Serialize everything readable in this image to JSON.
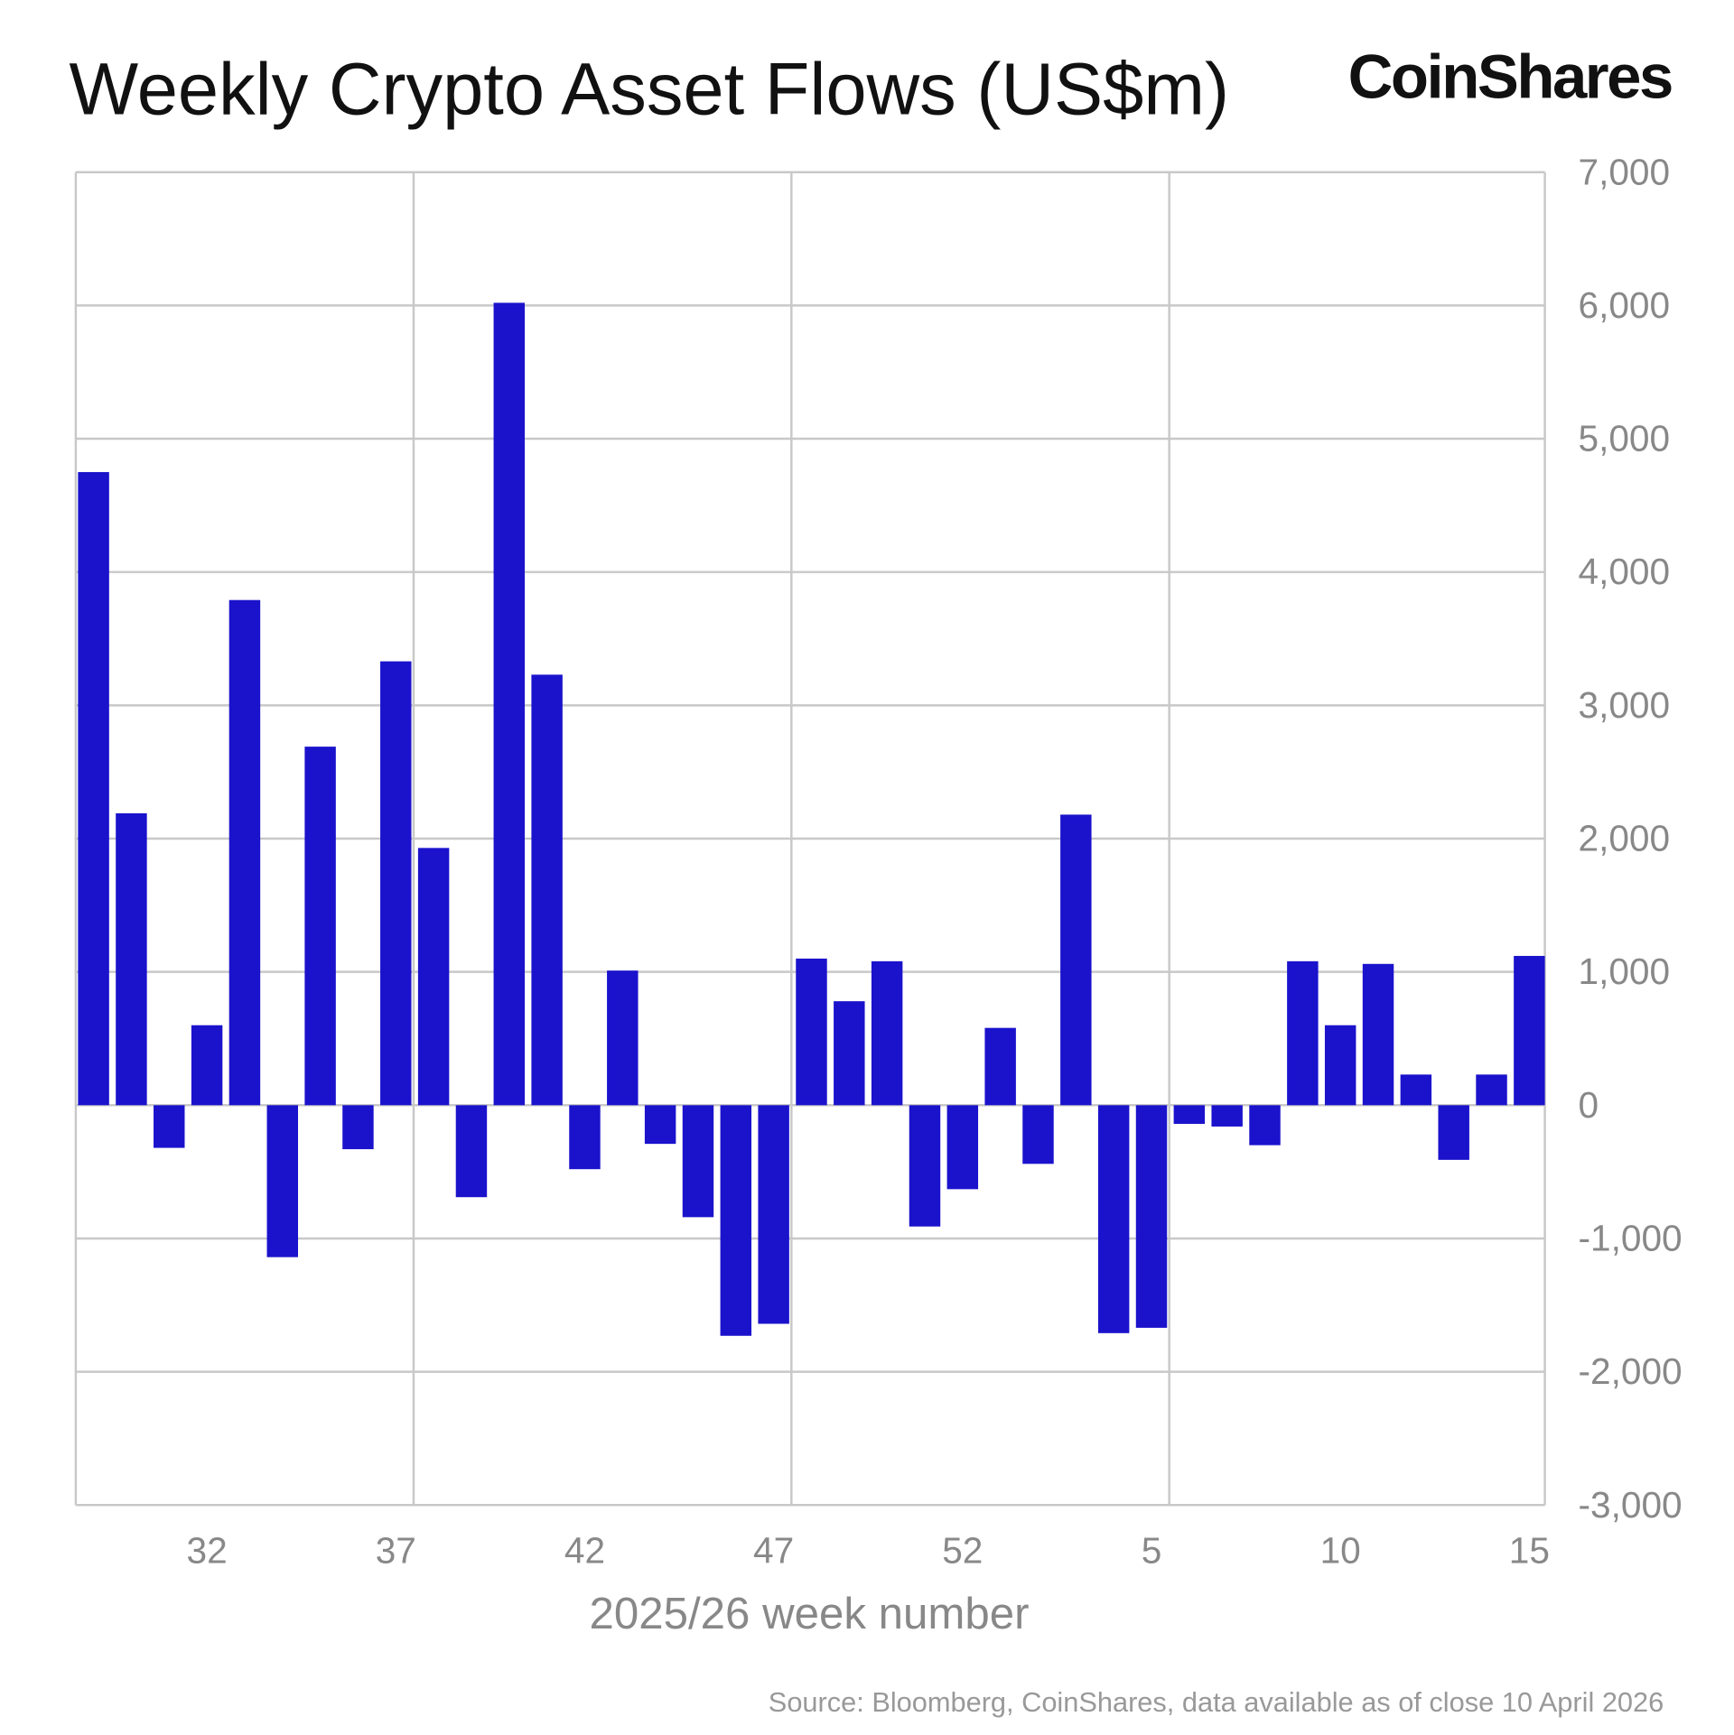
{
  "chart_data": {
    "type": "bar",
    "title": "Weekly Crypto Asset Flows (US$m)",
    "brand": "CoinShares",
    "xlabel": "2025/26 week number",
    "ylabel": "",
    "source": "Source: Bloomberg, CoinShares, data available as of close 10 April 2026",
    "ylim": [
      -3000,
      7000
    ],
    "yticks": [
      "7,000",
      "6,000",
      "5,000",
      "4,000",
      "3,000",
      "2,000",
      "1,000",
      "0",
      "-1,000",
      "-2,000",
      "-3,000"
    ],
    "ytick_values": [
      7000,
      6000,
      5000,
      4000,
      3000,
      2000,
      1000,
      0,
      -1000,
      -2000,
      -3000
    ],
    "xtick_labels": [
      "32",
      "37",
      "42",
      "47",
      "52",
      "5",
      "10",
      "15"
    ],
    "grid": true,
    "y_axis_position": "right",
    "bar_color": "#1b12cc",
    "categories": [
      "29",
      "30",
      "31",
      "32",
      "33",
      "34",
      "35",
      "36",
      "37",
      "38",
      "39",
      "40",
      "41",
      "42",
      "43",
      "44",
      "45",
      "46",
      "47",
      "48",
      "49",
      "50",
      "51",
      "52",
      "1",
      "2",
      "3",
      "4",
      "5",
      "6",
      "7",
      "8",
      "9",
      "10",
      "11",
      "12",
      "13",
      "14",
      "15"
    ],
    "values": [
      4750,
      2190,
      -320,
      600,
      3790,
      -1140,
      2690,
      -330,
      3330,
      1930,
      -690,
      6020,
      3230,
      -480,
      1010,
      -290,
      -840,
      -1730,
      -1640,
      1100,
      780,
      1080,
      -910,
      -630,
      580,
      -440,
      2180,
      -1710,
      -1670,
      -140,
      -160,
      -300,
      1080,
      600,
      1060,
      230,
      -410,
      230,
      1120
    ]
  }
}
